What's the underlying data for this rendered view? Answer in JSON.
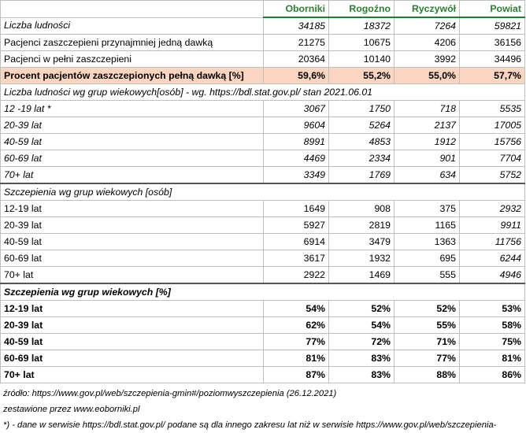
{
  "header": [
    "",
    "Oborniki",
    "Rogoźno",
    "Ryczywół",
    "Powiat"
  ],
  "summary": [
    {
      "label": "Liczba ludności",
      "values": [
        "34185",
        "18372",
        "7264",
        "59821"
      ]
    },
    {
      "label": "Pacjenci zaszczepieni przynajmniej jedną dawką",
      "values": [
        "21275",
        "10675",
        "4206",
        "36156"
      ]
    },
    {
      "label": "Pacjenci w pełni zaszczepieni",
      "values": [
        "20364",
        "10140",
        "3992",
        "34496"
      ]
    },
    {
      "label": "Procent pacjentów zaszczepionych pełną dawką [%]",
      "values": [
        "59,6%",
        "55,2%",
        "55,0%",
        "57,7%"
      ]
    }
  ],
  "population_title": "Liczba ludności wg grup wiekowych[osób] - wg. https://bdl.stat.gov.pl/ stan 2021.06.01",
  "population": [
    {
      "label": "12 -19 lat *",
      "values": [
        "3067",
        "1750",
        "718",
        "5535"
      ]
    },
    {
      "label": "20-39 lat",
      "values": [
        "9604",
        "5264",
        "2137",
        "17005"
      ]
    },
    {
      "label": "40-59 lat",
      "values": [
        "8991",
        "4853",
        "1912",
        "15756"
      ]
    },
    {
      "label": "60-69 lat",
      "values": [
        "4469",
        "2334",
        "901",
        "7704"
      ]
    },
    {
      "label": "70+ lat",
      "values": [
        "3349",
        "1769",
        "634",
        "5752"
      ]
    }
  ],
  "vaccinations_title": "Szczepienia wg grup wiekowych [osób]",
  "vaccinations": [
    {
      "label": "12-19 lat",
      "values": [
        "1649",
        "908",
        "375",
        "2932"
      ]
    },
    {
      "label": "20-39 lat",
      "values": [
        "5927",
        "2819",
        "1165",
        "9911"
      ]
    },
    {
      "label": "40-59 lat",
      "values": [
        "6914",
        "3479",
        "1363",
        "11756"
      ]
    },
    {
      "label": "60-69 lat",
      "values": [
        "3617",
        "1932",
        "695",
        "6244"
      ]
    },
    {
      "label": "70+ lat",
      "values": [
        "2922",
        "1469",
        "555",
        "4946"
      ]
    }
  ],
  "percent_title": "Szczepienia wg grup wiekowych [%]",
  "percent": [
    {
      "label": "12-19 lat",
      "values": [
        "54%",
        "52%",
        "52%",
        "53%"
      ]
    },
    {
      "label": "20-39 lat",
      "values": [
        "62%",
        "54%",
        "55%",
        "58%"
      ]
    },
    {
      "label": "40-59 lat",
      "values": [
        "77%",
        "72%",
        "71%",
        "75%"
      ]
    },
    {
      "label": "60-69 lat",
      "values": [
        "81%",
        "83%",
        "77%",
        "81%"
      ]
    },
    {
      "label": "70+ lat",
      "values": [
        "87%",
        "83%",
        "88%",
        "86%"
      ]
    }
  ],
  "footer": {
    "source": "źródło: https://www.gov.pl/web/szczepienia-gmin#/poziomwyszczepienia  (26.12.2021)",
    "compiled": "zestawione przez www.eoborniki.pl",
    "note": "*) - dane w serwisie https://bdl.stat.gov.pl/ podane są dla innego zakresu lat niż w serwisie https://www.gov.pl/web/szczepienia-"
  }
}
